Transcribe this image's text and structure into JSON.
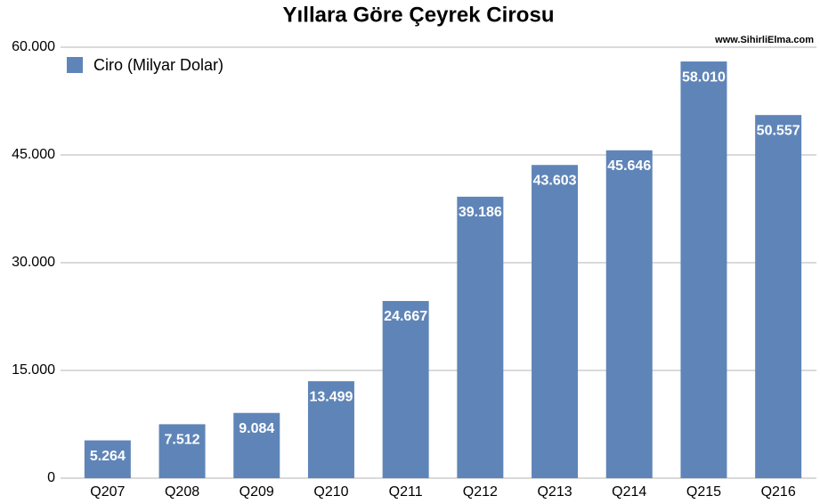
{
  "chart_data": {
    "type": "bar",
    "title": "Yıllara Göre Çeyrek Cirosu",
    "source": "www.SihirliElma.com",
    "categories": [
      "Q207",
      "Q208",
      "Q209",
      "Q210",
      "Q211",
      "Q212",
      "Q213",
      "Q214",
      "Q215",
      "Q216"
    ],
    "series": [
      {
        "name": "Ciro (Milyar Dolar)",
        "color": "#5f85b8",
        "values": [
          5.264,
          7.512,
          9.084,
          13.499,
          24.667,
          39.186,
          43.603,
          45.646,
          58.01,
          50.557
        ],
        "value_labels": [
          "5.264",
          "7.512",
          "9.084",
          "13.499",
          "24.667",
          "39.186",
          "43.603",
          "45.646",
          "58.010",
          "50.557"
        ]
      }
    ],
    "ylim": [
      0,
      60
    ],
    "yticks": [
      0,
      {
        "value": 15,
        "label": "15.000"
      },
      {
        "value": 30,
        "label": "30.000"
      },
      {
        "value": 45,
        "label": "45.000"
      },
      {
        "value": 60,
        "label": "60.000"
      }
    ],
    "grid": true,
    "legend": "top-left"
  }
}
